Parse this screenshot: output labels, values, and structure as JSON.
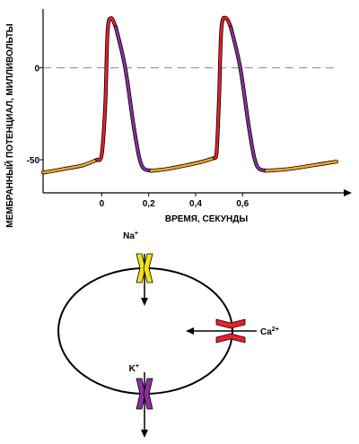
{
  "chart_data": {
    "type": "line",
    "ylabel": "МЕМБРАННЫЙ ПОТЕНЦИАЛ, МИЛЛИВОЛЬТЫ",
    "xlabel": "ВРЕМЯ, СЕКУНДЫ",
    "x_ticks": [
      "0",
      "0,2",
      "0,4",
      "0,6"
    ],
    "y_ticks": [
      "0",
      "-50"
    ],
    "xlim": [
      -0.25,
      1.05
    ],
    "ylim": [
      -68,
      32
    ],
    "reference_line": {
      "y": 0,
      "style": "dashed"
    },
    "series": [
      {
        "segments": [
          {
            "phase": "diastolic depolarization",
            "color": "#f5a623",
            "x": [
              -0.25,
              -0.16,
              -0.08,
              -0.02
            ],
            "y": [
              -57,
              -55,
              -53,
              -50
            ]
          },
          {
            "phase": "depolarization",
            "color": "#e8202a",
            "x": [
              -0.02,
              0.0,
              0.015,
              0.025,
              0.04,
              0.06
            ],
            "y": [
              -50,
              -47,
              -20,
              20,
              27,
              22
            ]
          },
          {
            "phase": "repolarization",
            "color": "#8b2fa0",
            "x": [
              0.06,
              0.1,
              0.14,
              0.17,
              0.21
            ],
            "y": [
              22,
              0,
              -35,
              -53,
              -56
            ]
          },
          {
            "phase": "diastolic depolarization",
            "color": "#f5a623",
            "x": [
              0.21,
              0.28,
              0.36,
              0.43,
              0.48
            ],
            "y": [
              -56,
              -55,
              -53,
              -51,
              -49
            ]
          },
          {
            "phase": "depolarization",
            "color": "#e8202a",
            "x": [
              0.48,
              0.49,
              0.5,
              0.51,
              0.53,
              0.55
            ],
            "y": [
              -49,
              -45,
              -15,
              22,
              27,
              22
            ]
          },
          {
            "phase": "repolarization",
            "color": "#8b2fa0",
            "x": [
              0.55,
              0.59,
              0.63,
              0.66,
              0.7
            ],
            "y": [
              22,
              0,
              -35,
              -53,
              -56
            ]
          },
          {
            "phase": "diastolic depolarization",
            "color": "#f5a623",
            "x": [
              0.7,
              0.8,
              0.9,
              1.0
            ],
            "y": [
              -56,
              -55,
              -53,
              -51
            ]
          }
        ]
      }
    ]
  },
  "cell_diagram": {
    "channels": [
      {
        "ion": "Na",
        "charge": "+",
        "color": "#f5e11b",
        "direction": "inward"
      },
      {
        "ion": "Ca",
        "charge": "2+",
        "color": "#e8202a",
        "direction": "inward"
      },
      {
        "ion": "K",
        "charge": "+",
        "color": "#8b2fa0",
        "direction": "outward"
      }
    ]
  }
}
